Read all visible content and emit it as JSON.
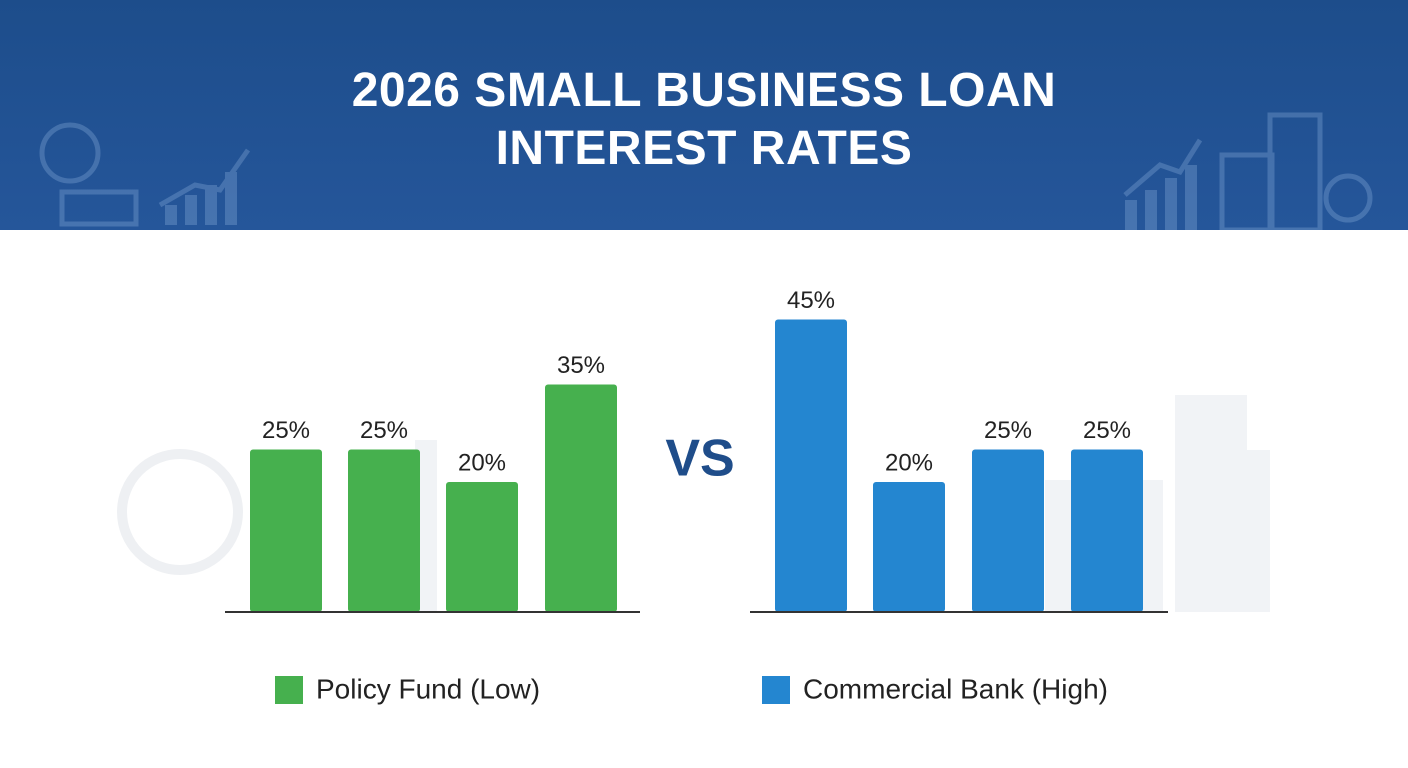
{
  "header": {
    "title": "2026 SMALL BUSINESS LOAN INTEREST RATES"
  },
  "vs_label": "VS",
  "chart_data": [
    {
      "type": "bar",
      "series": [
        {
          "name": "Policy Fund (Low)",
          "color": "#46b04e",
          "values": [
            25,
            25,
            20,
            35
          ],
          "value_labels": [
            "25%",
            "25%",
            "20%",
            "35%"
          ]
        }
      ]
    },
    {
      "type": "bar",
      "series": [
        {
          "name": "Commercial Bank (High)",
          "color": "#2486d0",
          "values": [
            45,
            20,
            25,
            25
          ],
          "value_labels": [
            "45%",
            "20%",
            "25%",
            "25%"
          ]
        }
      ]
    }
  ]
}
